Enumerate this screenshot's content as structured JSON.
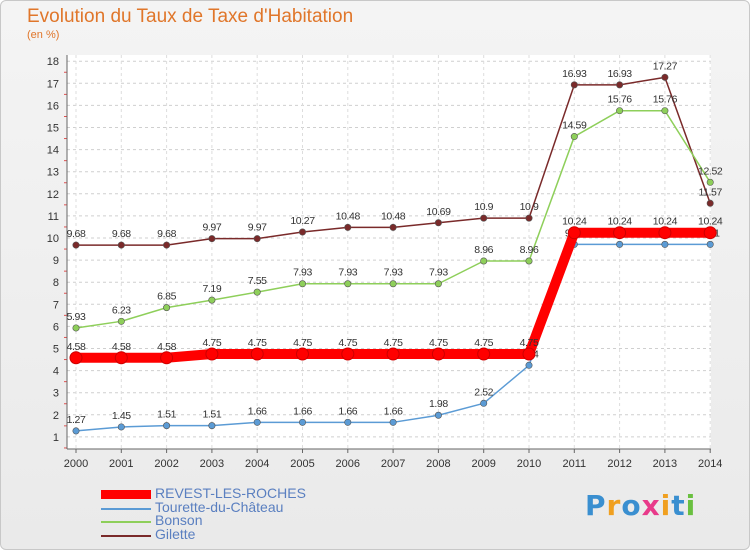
{
  "title": "Evolution du Taux de Taxe d'Habitation",
  "subtitle": "(en %)",
  "logo_letters": [
    {
      "ch": "P",
      "color": "#3a8fd0"
    },
    {
      "ch": "r",
      "color": "#f0a020"
    },
    {
      "ch": "o",
      "color": "#3a8fd0"
    },
    {
      "ch": "x",
      "color": "#e83a8a"
    },
    {
      "ch": "i",
      "color": "#f0a020"
    },
    {
      "ch": "t",
      "color": "#3a8fd0"
    },
    {
      "ch": "i",
      "color": "#6ac040"
    }
  ],
  "chart_data": {
    "type": "line",
    "x": [
      "2000",
      "2001",
      "2002",
      "2003",
      "2004",
      "2005",
      "2006",
      "2007",
      "2008",
      "2009",
      "2010",
      "2011",
      "2012",
      "2013",
      "2014"
    ],
    "ylim": [
      0,
      18
    ],
    "yticks": [
      1,
      2,
      3,
      4,
      5,
      6,
      7,
      8,
      9,
      10,
      11,
      12,
      13,
      14,
      15,
      16,
      17,
      18
    ],
    "grid": "horizontal dashed",
    "legend_placement": "bottom-left",
    "series": [
      {
        "name": "Gilette",
        "color": "#7a2a2a",
        "values": [
          9.68,
          9.68,
          9.68,
          9.97,
          9.97,
          10.27,
          10.48,
          10.48,
          10.69,
          10.9,
          10.9,
          16.93,
          16.93,
          17.27,
          11.57
        ],
        "labels": [
          "9.68",
          "9.68",
          "9.68",
          "9.97",
          "9.97",
          "10.27",
          "10.48",
          "10.48",
          "10.69",
          "10.9",
          "10.9",
          "16.93",
          "16.93",
          "17.27",
          "11.57"
        ]
      },
      {
        "name": "Bonson",
        "color": "#8ecf5a",
        "values": [
          5.93,
          6.23,
          6.85,
          7.19,
          7.55,
          7.93,
          7.93,
          7.93,
          7.93,
          8.96,
          8.96,
          14.59,
          15.76,
          15.76,
          12.52
        ],
        "labels": [
          "5.93",
          "6.23",
          "6.85",
          "7.19",
          "7.55",
          "7.93",
          "7.93",
          "7.93",
          "7.93",
          "8.96",
          "8.96",
          "14.59",
          "15.76",
          "15.76",
          "12.52"
        ]
      },
      {
        "name": "Tourette-du-Château",
        "color": "#5b9bd5",
        "values": [
          1.27,
          1.45,
          1.51,
          1.51,
          1.66,
          1.66,
          1.66,
          1.66,
          1.98,
          2.52,
          4.24,
          9.71,
          9.71,
          9.71,
          9.71
        ],
        "labels": [
          "1.27",
          "1.45",
          "1.51",
          "1.51",
          "1.66",
          "1.66",
          "1.66",
          "1.66",
          "1.98",
          "2.52",
          "4.24",
          "9.71",
          "9.71",
          "9.71",
          "9.71"
        ]
      },
      {
        "name": "REVEST-LES-ROCHES",
        "color": "#ff0000",
        "values": [
          4.58,
          4.58,
          4.58,
          4.75,
          4.75,
          4.75,
          4.75,
          4.75,
          4.75,
          4.75,
          4.75,
          10.24,
          10.24,
          10.24,
          10.24
        ],
        "labels": [
          "4.58",
          "4.58",
          "4.58",
          "4.75",
          "4.75",
          "4.75",
          "4.75",
          "4.75",
          "4.75",
          "4.75",
          "4.75",
          "10.24",
          "10.24",
          "10.24",
          "10.24"
        ]
      }
    ],
    "legend": [
      {
        "name": "REVEST-LES-ROCHES",
        "color": "#ff0000",
        "thick": true
      },
      {
        "name": "Tourette-du-Château",
        "color": "#5b9bd5",
        "thick": false
      },
      {
        "name": "Bonson",
        "color": "#8ecf5a",
        "thick": false
      },
      {
        "name": "Gilette",
        "color": "#7a2a2a",
        "thick": false
      }
    ]
  }
}
